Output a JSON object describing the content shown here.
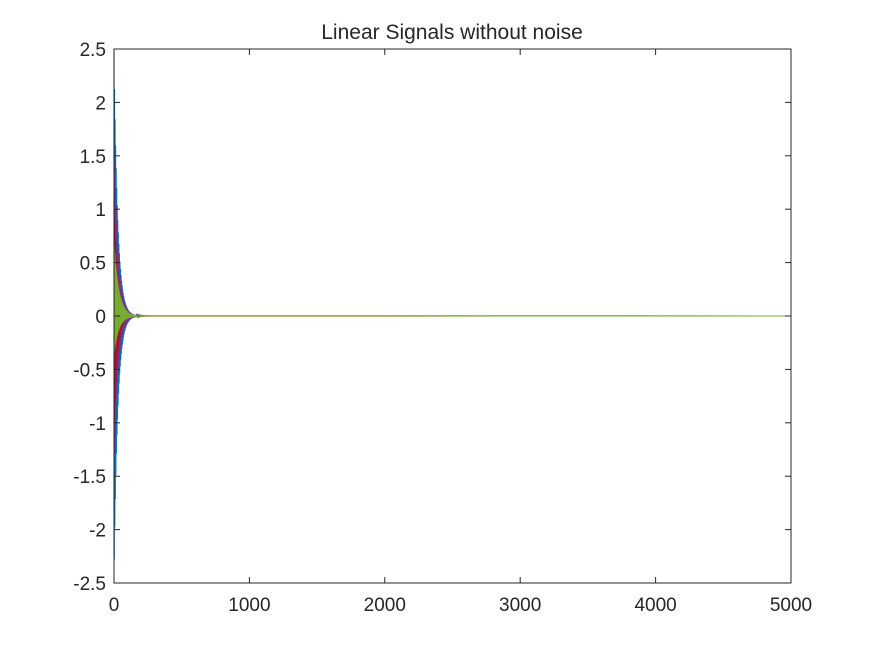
{
  "chart_data": {
    "type": "line",
    "title": "Linear Signals without noise",
    "xlabel": "",
    "ylabel": "",
    "xlim": [
      0,
      5000
    ],
    "ylim": [
      -2.5,
      2.5
    ],
    "x_ticks": [
      0,
      1000,
      2000,
      3000,
      4000,
      5000
    ],
    "x_tick_labels": [
      "0",
      "1000",
      "2000",
      "3000",
      "4000",
      "5000"
    ],
    "y_ticks": [
      2.5,
      2,
      1.5,
      1,
      0.5,
      0,
      -0.5,
      -1,
      -1.5,
      -2,
      -2.5
    ],
    "y_tick_labels": [
      "2.5",
      "2",
      "1.5",
      "1",
      "0.5",
      "0",
      "-0.5",
      "-1",
      "-1.5",
      "-2",
      "-2.5"
    ],
    "grid": false,
    "legend": "none",
    "series": [
      {
        "color": "#0072BD",
        "x_end": 5000,
        "amplitude": 2.45,
        "decay_length": 28,
        "period": 4
      },
      {
        "color": "#7E2F8E",
        "x_end": 5000,
        "amplitude": 1.7,
        "decay_length": 30,
        "period": 5
      },
      {
        "color": "#A2142F",
        "x_end": 5000,
        "amplitude": 1.1,
        "decay_length": 26,
        "period": 6
      },
      {
        "color": "#D95319",
        "x_end": 5000,
        "amplitude": 0.6,
        "decay_length": 22,
        "period": 3
      },
      {
        "color": "#77AC30",
        "x_end": 5000,
        "amplitude": 0.7,
        "decay_length": 35,
        "period": 3
      }
    ]
  }
}
